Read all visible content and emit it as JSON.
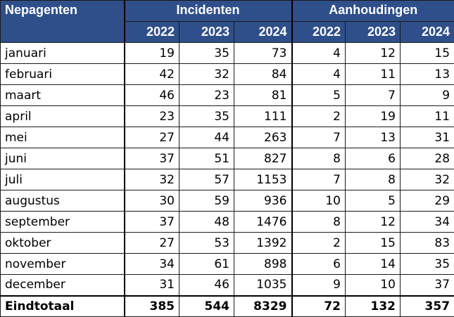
{
  "header": {
    "corner": "Nepagenten",
    "group1": "Incidenten",
    "group2": "Aanhoudingen",
    "years": [
      "2022",
      "2023",
      "2024",
      "2022",
      "2023",
      "2024"
    ]
  },
  "rows": [
    {
      "month": "januari",
      "values": [
        "19",
        "35",
        "73",
        "4",
        "12",
        "15"
      ]
    },
    {
      "month": "februari",
      "values": [
        "42",
        "32",
        "84",
        "4",
        "11",
        "13"
      ]
    },
    {
      "month": "maart",
      "values": [
        "46",
        "23",
        "81",
        "5",
        "7",
        "9"
      ]
    },
    {
      "month": "april",
      "values": [
        "23",
        "35",
        "111",
        "2",
        "19",
        "11"
      ]
    },
    {
      "month": "mei",
      "values": [
        "27",
        "44",
        "263",
        "7",
        "13",
        "31"
      ]
    },
    {
      "month": "juni",
      "values": [
        "37",
        "51",
        "827",
        "8",
        "6",
        "28"
      ]
    },
    {
      "month": "juli",
      "values": [
        "32",
        "57",
        "1153",
        "7",
        "8",
        "32"
      ]
    },
    {
      "month": "augustus",
      "values": [
        "30",
        "59",
        "936",
        "10",
        "5",
        "29"
      ]
    },
    {
      "month": "september",
      "values": [
        "37",
        "48",
        "1476",
        "8",
        "12",
        "34"
      ]
    },
    {
      "month": "oktober",
      "values": [
        "27",
        "53",
        "1392",
        "2",
        "15",
        "83"
      ]
    },
    {
      "month": "november",
      "values": [
        "34",
        "61",
        "898",
        "6",
        "14",
        "35"
      ]
    },
    {
      "month": "december",
      "values": [
        "31",
        "46",
        "1035",
        "9",
        "10",
        "37"
      ]
    }
  ],
  "total": {
    "label": "Eindtotaal",
    "values": [
      "385",
      "544",
      "8329",
      "72",
      "132",
      "357"
    ]
  }
}
